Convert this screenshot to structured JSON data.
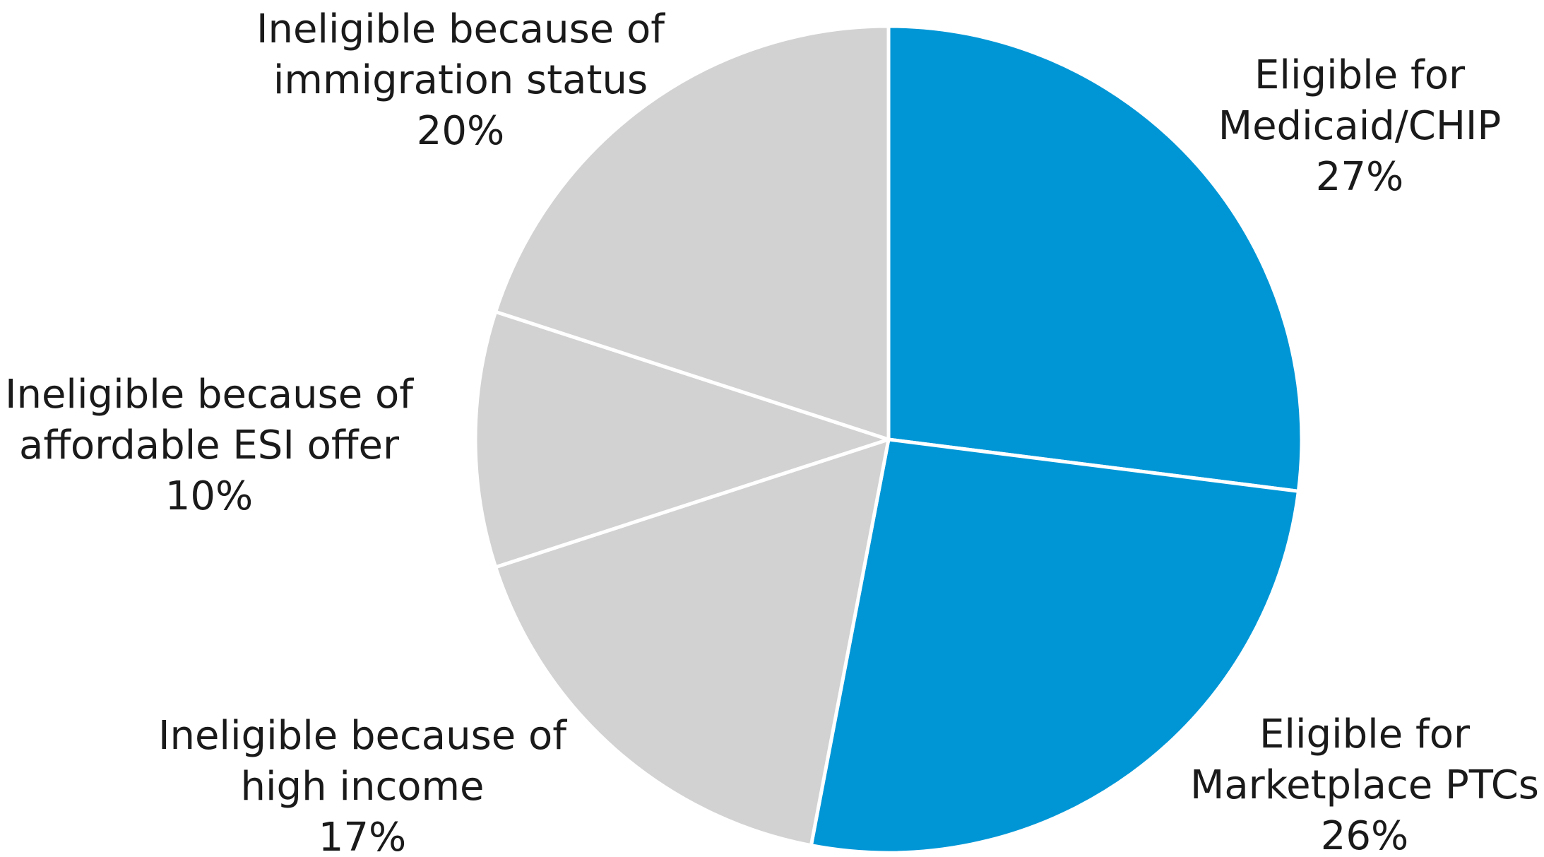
{
  "chart_data": {
    "type": "pie",
    "start_angle_deg": 0,
    "direction": "clockwise",
    "slices": [
      {
        "label_lines": [
          "Eligible for",
          "Medicaid/CHIP"
        ],
        "percent_label": "27%",
        "value": 27,
        "color": "#0096D6"
      },
      {
        "label_lines": [
          "Eligible for",
          "Marketplace PTCs"
        ],
        "percent_label": "26%",
        "value": 26,
        "color": "#0096D6"
      },
      {
        "label_lines": [
          "Ineligible because of",
          "high income"
        ],
        "percent_label": "17%",
        "value": 17,
        "color": "#D2D2D2"
      },
      {
        "label_lines": [
          "Ineligible because of",
          "affordable ESI offer"
        ],
        "percent_label": "10%",
        "value": 10,
        "color": "#D2D2D2"
      },
      {
        "label_lines": [
          "Ineligible because of",
          "immigration status"
        ],
        "percent_label": "20%",
        "value": 20,
        "color": "#D2D2D2"
      }
    ],
    "legend": "none",
    "title": ""
  }
}
